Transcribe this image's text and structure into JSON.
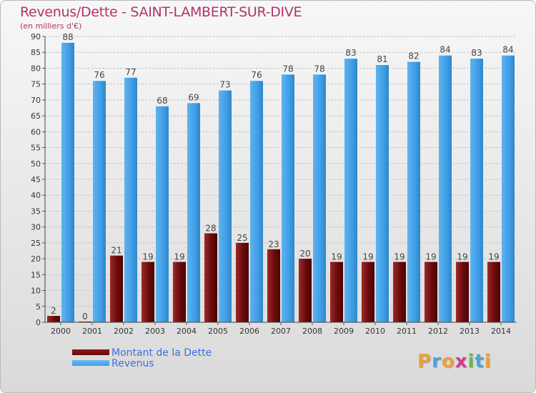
{
  "header": {
    "title": "Revenus/Dette - SAINT-LAMBERT-SUR-DIVE",
    "subtitle": "(en milliers d'€)"
  },
  "legend": {
    "items": [
      {
        "label": "Montant de la Dette",
        "color": "#6b0a0a"
      },
      {
        "label": "Revenus",
        "color": "#3e9ee6"
      }
    ]
  },
  "brand": {
    "text": "Proxiti",
    "colors": [
      "#e8a13a",
      "#4aa3df",
      "#e8a13a",
      "#d23a8c",
      "#6bb84a",
      "#4aa3df",
      "#e8a13a"
    ]
  },
  "chart_data": {
    "type": "bar",
    "categories": [
      "2000",
      "2001",
      "2002",
      "2003",
      "2004",
      "2005",
      "2006",
      "2007",
      "2008",
      "2009",
      "2010",
      "2011",
      "2012",
      "2013",
      "2014"
    ],
    "series": [
      {
        "name": "Montant de la Dette",
        "values": [
          2,
          0,
          21,
          19,
          19,
          28,
          25,
          23,
          20,
          19,
          19,
          19,
          19,
          19,
          19
        ],
        "color": "#6b0a0a"
      },
      {
        "name": "Revenus",
        "values": [
          88,
          76,
          77,
          68,
          69,
          73,
          76,
          78,
          78,
          83,
          81,
          82,
          84,
          83,
          84
        ],
        "color": "#3e9ee6"
      }
    ],
    "ylim": [
      0,
      90
    ],
    "yticks": [
      0,
      5,
      10,
      15,
      20,
      25,
      30,
      35,
      40,
      45,
      50,
      55,
      60,
      65,
      70,
      75,
      80,
      85,
      90
    ],
    "grid": true,
    "legend_position": "bottom-left"
  }
}
